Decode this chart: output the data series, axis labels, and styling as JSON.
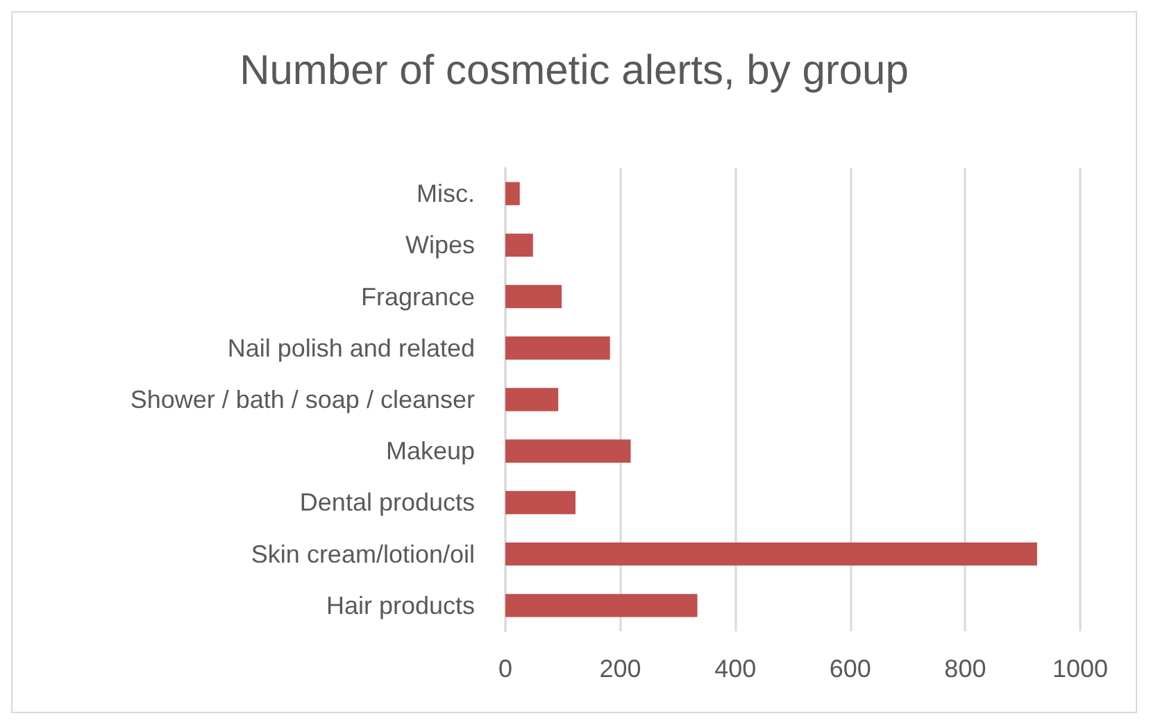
{
  "chart_data": {
    "type": "bar",
    "orientation": "horizontal",
    "title": "Number of cosmetic alerts, by group",
    "categories": [
      "Misc.",
      "Wipes",
      "Fragrance",
      "Nail polish and related",
      "Shower / bath / soap / cleanser",
      "Makeup",
      "Dental products",
      "Skin cream/lotion/oil",
      "Hair products"
    ],
    "values": [
      25,
      48,
      98,
      182,
      92,
      218,
      122,
      925,
      334
    ],
    "color": "#c0504d",
    "xlim": [
      0,
      1000
    ],
    "xticks": [
      0,
      200,
      400,
      600,
      800,
      1000
    ],
    "grid": "x"
  }
}
